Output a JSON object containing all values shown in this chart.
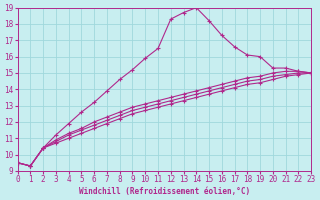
{
  "xlabel": "Windchill (Refroidissement éolien,°C)",
  "bg_color": "#c8eef0",
  "grid_color": "#a0d8dc",
  "line_color": "#b0288c",
  "xlim": [
    0,
    23
  ],
  "ylim": [
    9,
    19
  ],
  "xticks": [
    0,
    1,
    2,
    3,
    4,
    5,
    6,
    7,
    8,
    9,
    10,
    11,
    12,
    13,
    14,
    15,
    16,
    17,
    18,
    19,
    20,
    21,
    22,
    23
  ],
  "yticks": [
    9,
    10,
    11,
    12,
    13,
    14,
    15,
    16,
    17,
    18,
    19
  ],
  "series": [
    {
      "x": [
        0,
        1,
        2,
        3,
        4,
        5,
        6,
        7,
        8,
        9,
        10,
        11,
        12,
        13,
        14,
        15,
        16,
        17,
        18,
        19,
        20,
        21,
        22,
        23
      ],
      "y": [
        9.5,
        9.3,
        10.4,
        11.2,
        11.9,
        12.6,
        13.2,
        13.9,
        14.6,
        15.2,
        15.9,
        16.5,
        18.3,
        18.7,
        19.0,
        18.2,
        17.3,
        16.6,
        16.1,
        16.0,
        15.3,
        15.3,
        15.1,
        15.0
      ]
    },
    {
      "x": [
        0,
        1,
        2,
        3,
        4,
        5,
        6,
        7,
        8,
        9,
        10,
        11,
        12,
        13,
        14,
        15,
        16,
        17,
        18,
        19,
        20,
        21,
        22,
        23
      ],
      "y": [
        9.5,
        9.3,
        10.4,
        10.9,
        11.3,
        11.6,
        12.0,
        12.3,
        12.6,
        12.9,
        13.1,
        13.3,
        13.5,
        13.7,
        13.9,
        14.1,
        14.3,
        14.5,
        14.7,
        14.8,
        15.0,
        15.1,
        15.1,
        15.0
      ]
    },
    {
      "x": [
        0,
        1,
        2,
        3,
        4,
        5,
        6,
        7,
        8,
        9,
        10,
        11,
        12,
        13,
        14,
        15,
        16,
        17,
        18,
        19,
        20,
        21,
        22,
        23
      ],
      "y": [
        9.5,
        9.3,
        10.4,
        10.8,
        11.2,
        11.5,
        11.8,
        12.1,
        12.4,
        12.7,
        12.9,
        13.1,
        13.3,
        13.5,
        13.7,
        13.9,
        14.1,
        14.3,
        14.5,
        14.6,
        14.8,
        14.9,
        15.0,
        15.0
      ]
    },
    {
      "x": [
        0,
        1,
        2,
        3,
        4,
        5,
        6,
        7,
        8,
        9,
        10,
        11,
        12,
        13,
        14,
        15,
        16,
        17,
        18,
        19,
        20,
        21,
        22,
        23
      ],
      "y": [
        9.5,
        9.3,
        10.4,
        10.7,
        11.0,
        11.3,
        11.6,
        11.9,
        12.2,
        12.5,
        12.7,
        12.9,
        13.1,
        13.3,
        13.5,
        13.7,
        13.9,
        14.1,
        14.3,
        14.4,
        14.6,
        14.8,
        14.9,
        15.0
      ]
    }
  ]
}
